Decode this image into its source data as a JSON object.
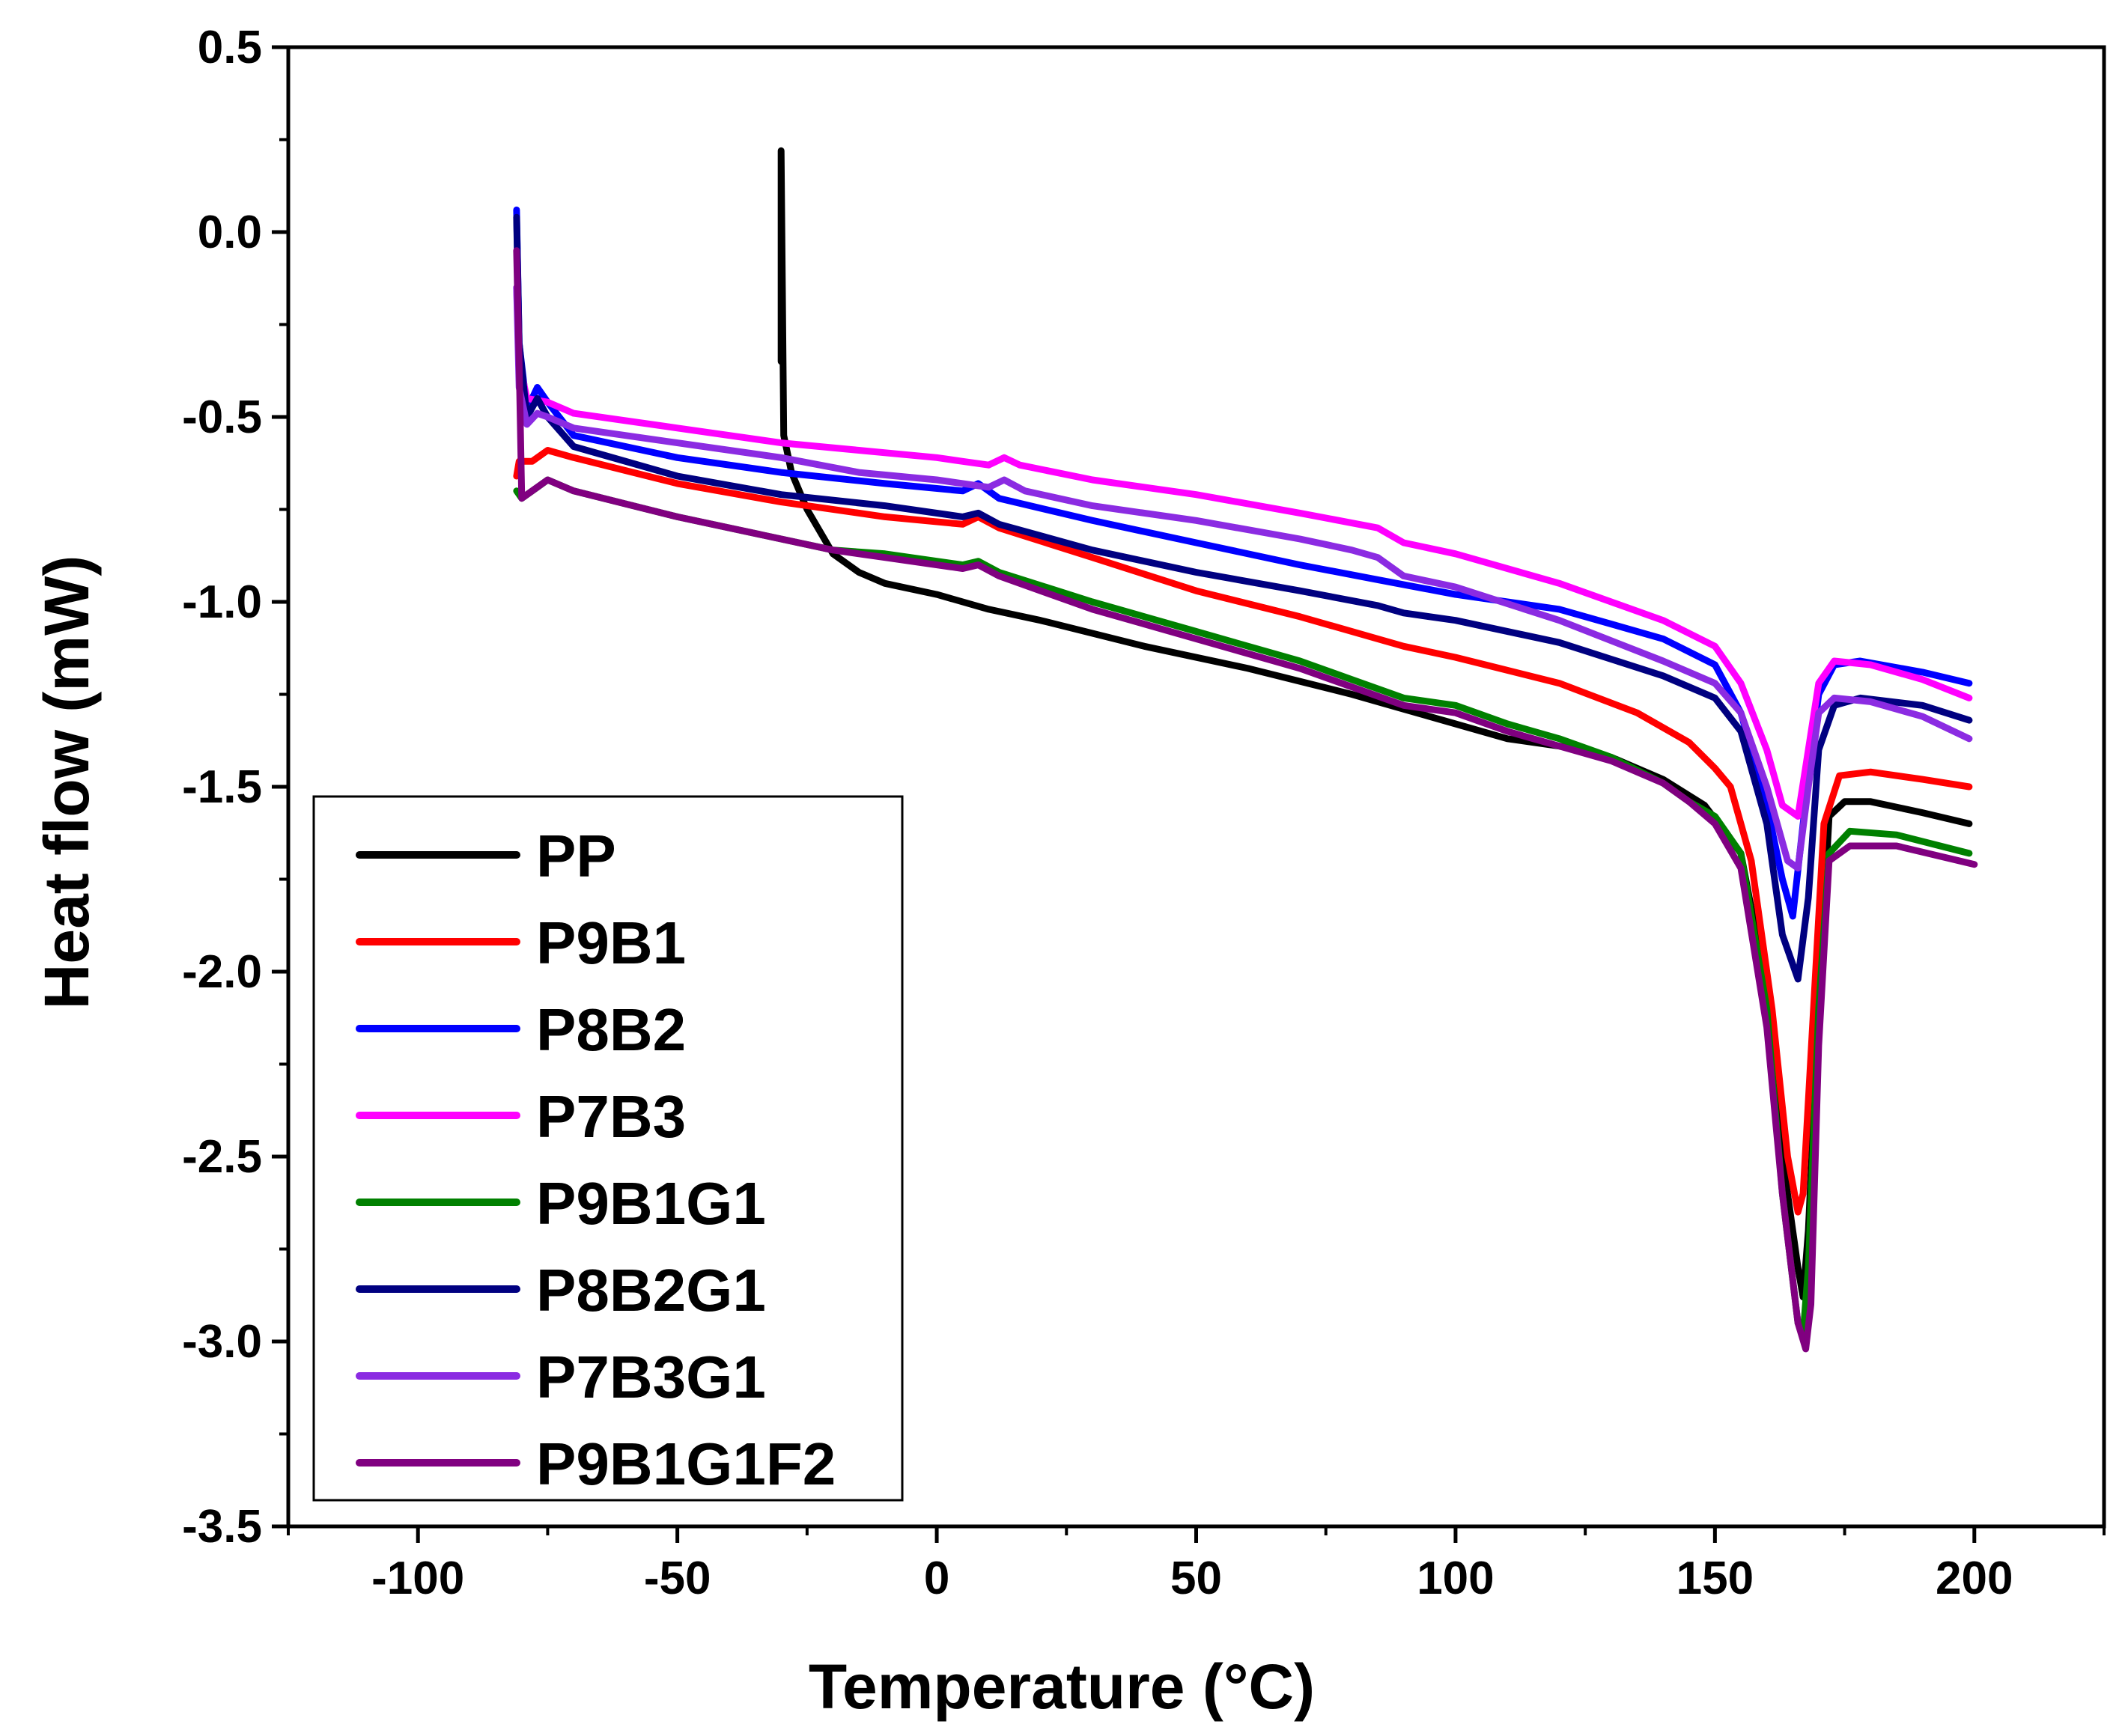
{
  "chart_data": {
    "type": "line",
    "xlabel": "Temperature (°C)",
    "ylabel": "Heat flow (mW)",
    "xlim": [
      -125,
      225
    ],
    "ylim": [
      -3.5,
      0.5
    ],
    "xticks": [
      -100,
      -50,
      0,
      50,
      100,
      150,
      200
    ],
    "xtick_labels": [
      "-100",
      "-50",
      "0",
      "50",
      "100",
      "150",
      "200"
    ],
    "yticks": [
      0.5,
      0.0,
      -0.5,
      -1.0,
      -1.5,
      -2.0,
      -2.5,
      -3.0,
      -3.5
    ],
    "ytick_labels": [
      "0.5",
      "0.0",
      "-0.5",
      "-1.0",
      "-1.5",
      "-2.0",
      "-2.5",
      "-3.0",
      "-3.5"
    ],
    "legend_position": "bottom-left",
    "series": [
      {
        "name": "PP",
        "color": "#000000",
        "points": [
          [
            -30,
            -0.35
          ],
          [
            -30,
            0.22
          ],
          [
            -29.5,
            -0.55
          ],
          [
            -28,
            -0.65
          ],
          [
            -25,
            -0.75
          ],
          [
            -20,
            -0.87
          ],
          [
            -15,
            -0.92
          ],
          [
            -10,
            -0.95
          ],
          [
            0,
            -0.98
          ],
          [
            10,
            -1.02
          ],
          [
            20,
            -1.05
          ],
          [
            40,
            -1.12
          ],
          [
            60,
            -1.18
          ],
          [
            80,
            -1.25
          ],
          [
            90,
            -1.29
          ],
          [
            100,
            -1.33
          ],
          [
            110,
            -1.37
          ],
          [
            120,
            -1.39
          ],
          [
            130,
            -1.42
          ],
          [
            140,
            -1.48
          ],
          [
            148,
            -1.55
          ],
          [
            155,
            -1.68
          ],
          [
            160,
            -2.05
          ],
          [
            163,
            -2.5
          ],
          [
            166,
            -2.8
          ],
          [
            167,
            -2.88
          ],
          [
            168,
            -2.7
          ],
          [
            170,
            -2.1
          ],
          [
            172,
            -1.58
          ],
          [
            175,
            -1.54
          ],
          [
            180,
            -1.54
          ],
          [
            190,
            -1.57
          ],
          [
            199,
            -1.6
          ]
        ]
      },
      {
        "name": "P9B1",
        "color": "#ff0000",
        "points": [
          [
            -81,
            -0.66
          ],
          [
            -80.5,
            -0.62
          ],
          [
            -78,
            -0.62
          ],
          [
            -75,
            -0.59
          ],
          [
            -70,
            -0.61
          ],
          [
            -50,
            -0.68
          ],
          [
            -30,
            -0.73
          ],
          [
            -10,
            -0.77
          ],
          [
            5,
            -0.79
          ],
          [
            8,
            -0.77
          ],
          [
            12,
            -0.8
          ],
          [
            30,
            -0.88
          ],
          [
            50,
            -0.97
          ],
          [
            70,
            -1.04
          ],
          [
            85,
            -1.1
          ],
          [
            90,
            -1.12
          ],
          [
            100,
            -1.15
          ],
          [
            120,
            -1.22
          ],
          [
            135,
            -1.3
          ],
          [
            145,
            -1.38
          ],
          [
            150,
            -1.45
          ],
          [
            153,
            -1.5
          ],
          [
            157,
            -1.7
          ],
          [
            161,
            -2.1
          ],
          [
            164,
            -2.5
          ],
          [
            166,
            -2.65
          ],
          [
            167,
            -2.6
          ],
          [
            169,
            -2.1
          ],
          [
            171,
            -1.6
          ],
          [
            174,
            -1.47
          ],
          [
            180,
            -1.46
          ],
          [
            190,
            -1.48
          ],
          [
            199,
            -1.5
          ]
        ]
      },
      {
        "name": "P8B2",
        "color": "#0000ff",
        "points": [
          [
            -81,
            0.06
          ],
          [
            -80.5,
            -0.3
          ],
          [
            -79,
            -0.48
          ],
          [
            -77,
            -0.42
          ],
          [
            -75,
            -0.46
          ],
          [
            -70,
            -0.55
          ],
          [
            -50,
            -0.61
          ],
          [
            -30,
            -0.65
          ],
          [
            -10,
            -0.68
          ],
          [
            5,
            -0.7
          ],
          [
            8,
            -0.68
          ],
          [
            12,
            -0.72
          ],
          [
            30,
            -0.78
          ],
          [
            50,
            -0.84
          ],
          [
            70,
            -0.9
          ],
          [
            85,
            -0.94
          ],
          [
            100,
            -0.98
          ],
          [
            120,
            -1.02
          ],
          [
            140,
            -1.1
          ],
          [
            150,
            -1.17
          ],
          [
            155,
            -1.3
          ],
          [
            160,
            -1.55
          ],
          [
            163,
            -1.75
          ],
          [
            165,
            -1.85
          ],
          [
            167,
            -1.6
          ],
          [
            170,
            -1.25
          ],
          [
            173,
            -1.17
          ],
          [
            178,
            -1.16
          ],
          [
            190,
            -1.19
          ],
          [
            199,
            -1.22
          ]
        ]
      },
      {
        "name": "P7B3",
        "color": "#ff00ff",
        "points": [
          [
            -81,
            -0.15
          ],
          [
            -80.5,
            -0.35
          ],
          [
            -79,
            -0.45
          ],
          [
            -75,
            -0.46
          ],
          [
            -70,
            -0.49
          ],
          [
            -50,
            -0.53
          ],
          [
            -30,
            -0.57
          ],
          [
            -15,
            -0.59
          ],
          [
            0,
            -0.61
          ],
          [
            5,
            -0.62
          ],
          [
            10,
            -0.63
          ],
          [
            13,
            -0.61
          ],
          [
            16,
            -0.63
          ],
          [
            30,
            -0.67
          ],
          [
            50,
            -0.71
          ],
          [
            70,
            -0.76
          ],
          [
            85,
            -0.8
          ],
          [
            90,
            -0.84
          ],
          [
            100,
            -0.87
          ],
          [
            120,
            -0.95
          ],
          [
            140,
            -1.05
          ],
          [
            150,
            -1.12
          ],
          [
            155,
            -1.22
          ],
          [
            160,
            -1.4
          ],
          [
            163,
            -1.55
          ],
          [
            166,
            -1.58
          ],
          [
            168,
            -1.4
          ],
          [
            170,
            -1.22
          ],
          [
            173,
            -1.16
          ],
          [
            180,
            -1.17
          ],
          [
            190,
            -1.21
          ],
          [
            199,
            -1.26
          ]
        ]
      },
      {
        "name": "P9B1G1",
        "color": "#008000",
        "points": [
          [
            -81,
            -0.7
          ],
          [
            -80,
            -0.72
          ],
          [
            -77,
            -0.69
          ],
          [
            -75,
            -0.67
          ],
          [
            -70,
            -0.7
          ],
          [
            -50,
            -0.77
          ],
          [
            -30,
            -0.83
          ],
          [
            -20,
            -0.86
          ],
          [
            -10,
            -0.87
          ],
          [
            5,
            -0.9
          ],
          [
            8,
            -0.89
          ],
          [
            12,
            -0.92
          ],
          [
            30,
            -1.0
          ],
          [
            50,
            -1.08
          ],
          [
            70,
            -1.16
          ],
          [
            80,
            -1.21
          ],
          [
            90,
            -1.26
          ],
          [
            100,
            -1.28
          ],
          [
            110,
            -1.33
          ],
          [
            120,
            -1.37
          ],
          [
            130,
            -1.42
          ],
          [
            140,
            -1.49
          ],
          [
            145,
            -1.54
          ],
          [
            150,
            -1.58
          ],
          [
            155,
            -1.68
          ],
          [
            160,
            -2.1
          ],
          [
            163,
            -2.6
          ],
          [
            166,
            -2.95
          ],
          [
            167,
            -2.98
          ],
          [
            168,
            -2.8
          ],
          [
            170,
            -2.1
          ],
          [
            172,
            -1.68
          ],
          [
            176,
            -1.62
          ],
          [
            185,
            -1.63
          ],
          [
            199,
            -1.68
          ]
        ]
      },
      {
        "name": "P8B2G1",
        "color": "#000080",
        "points": [
          [
            -81,
            0.04
          ],
          [
            -80.5,
            -0.3
          ],
          [
            -79,
            -0.5
          ],
          [
            -77,
            -0.45
          ],
          [
            -75,
            -0.5
          ],
          [
            -70,
            -0.58
          ],
          [
            -50,
            -0.66
          ],
          [
            -30,
            -0.71
          ],
          [
            -10,
            -0.74
          ],
          [
            5,
            -0.77
          ],
          [
            8,
            -0.76
          ],
          [
            12,
            -0.79
          ],
          [
            30,
            -0.86
          ],
          [
            50,
            -0.92
          ],
          [
            70,
            -0.97
          ],
          [
            85,
            -1.01
          ],
          [
            90,
            -1.03
          ],
          [
            100,
            -1.05
          ],
          [
            120,
            -1.11
          ],
          [
            140,
            -1.2
          ],
          [
            150,
            -1.26
          ],
          [
            155,
            -1.35
          ],
          [
            160,
            -1.6
          ],
          [
            163,
            -1.9
          ],
          [
            166,
            -2.02
          ],
          [
            168,
            -1.8
          ],
          [
            170,
            -1.4
          ],
          [
            173,
            -1.28
          ],
          [
            178,
            -1.26
          ],
          [
            190,
            -1.28
          ],
          [
            199,
            -1.32
          ]
        ]
      },
      {
        "name": "P7B3G1",
        "color": "#8b2be2",
        "points": [
          [
            -81,
            -0.15
          ],
          [
            -80.5,
            -0.42
          ],
          [
            -79,
            -0.52
          ],
          [
            -77,
            -0.49
          ],
          [
            -75,
            -0.5
          ],
          [
            -70,
            -0.53
          ],
          [
            -50,
            -0.57
          ],
          [
            -30,
            -0.61
          ],
          [
            -15,
            -0.65
          ],
          [
            0,
            -0.67
          ],
          [
            10,
            -0.69
          ],
          [
            13,
            -0.67
          ],
          [
            17,
            -0.7
          ],
          [
            30,
            -0.74
          ],
          [
            50,
            -0.78
          ],
          [
            70,
            -0.83
          ],
          [
            80,
            -0.86
          ],
          [
            85,
            -0.88
          ],
          [
            90,
            -0.93
          ],
          [
            100,
            -0.96
          ],
          [
            120,
            -1.05
          ],
          [
            140,
            -1.16
          ],
          [
            150,
            -1.22
          ],
          [
            155,
            -1.3
          ],
          [
            160,
            -1.5
          ],
          [
            164,
            -1.7
          ],
          [
            166,
            -1.72
          ],
          [
            168,
            -1.5
          ],
          [
            170,
            -1.3
          ],
          [
            173,
            -1.26
          ],
          [
            180,
            -1.27
          ],
          [
            190,
            -1.31
          ],
          [
            199,
            -1.37
          ]
        ]
      },
      {
        "name": "P9B1G1F2",
        "color": "#800080",
        "points": [
          [
            -81,
            -0.05
          ],
          [
            -80.5,
            -0.35
          ],
          [
            -80,
            -0.72
          ],
          [
            -78,
            -0.7
          ],
          [
            -75,
            -0.67
          ],
          [
            -70,
            -0.7
          ],
          [
            -50,
            -0.77
          ],
          [
            -30,
            -0.83
          ],
          [
            -20,
            -0.86
          ],
          [
            -10,
            -0.88
          ],
          [
            5,
            -0.91
          ],
          [
            8,
            -0.9
          ],
          [
            12,
            -0.93
          ],
          [
            30,
            -1.02
          ],
          [
            50,
            -1.1
          ],
          [
            70,
            -1.18
          ],
          [
            80,
            -1.23
          ],
          [
            90,
            -1.28
          ],
          [
            100,
            -1.3
          ],
          [
            110,
            -1.35
          ],
          [
            120,
            -1.39
          ],
          [
            130,
            -1.43
          ],
          [
            140,
            -1.49
          ],
          [
            145,
            -1.54
          ],
          [
            150,
            -1.6
          ],
          [
            155,
            -1.72
          ],
          [
            160,
            -2.15
          ],
          [
            163,
            -2.6
          ],
          [
            166,
            -2.95
          ],
          [
            167.5,
            -3.02
          ],
          [
            168.5,
            -2.9
          ],
          [
            170,
            -2.2
          ],
          [
            172,
            -1.7
          ],
          [
            176,
            -1.66
          ],
          [
            185,
            -1.66
          ],
          [
            200,
            -1.71
          ]
        ]
      }
    ]
  }
}
